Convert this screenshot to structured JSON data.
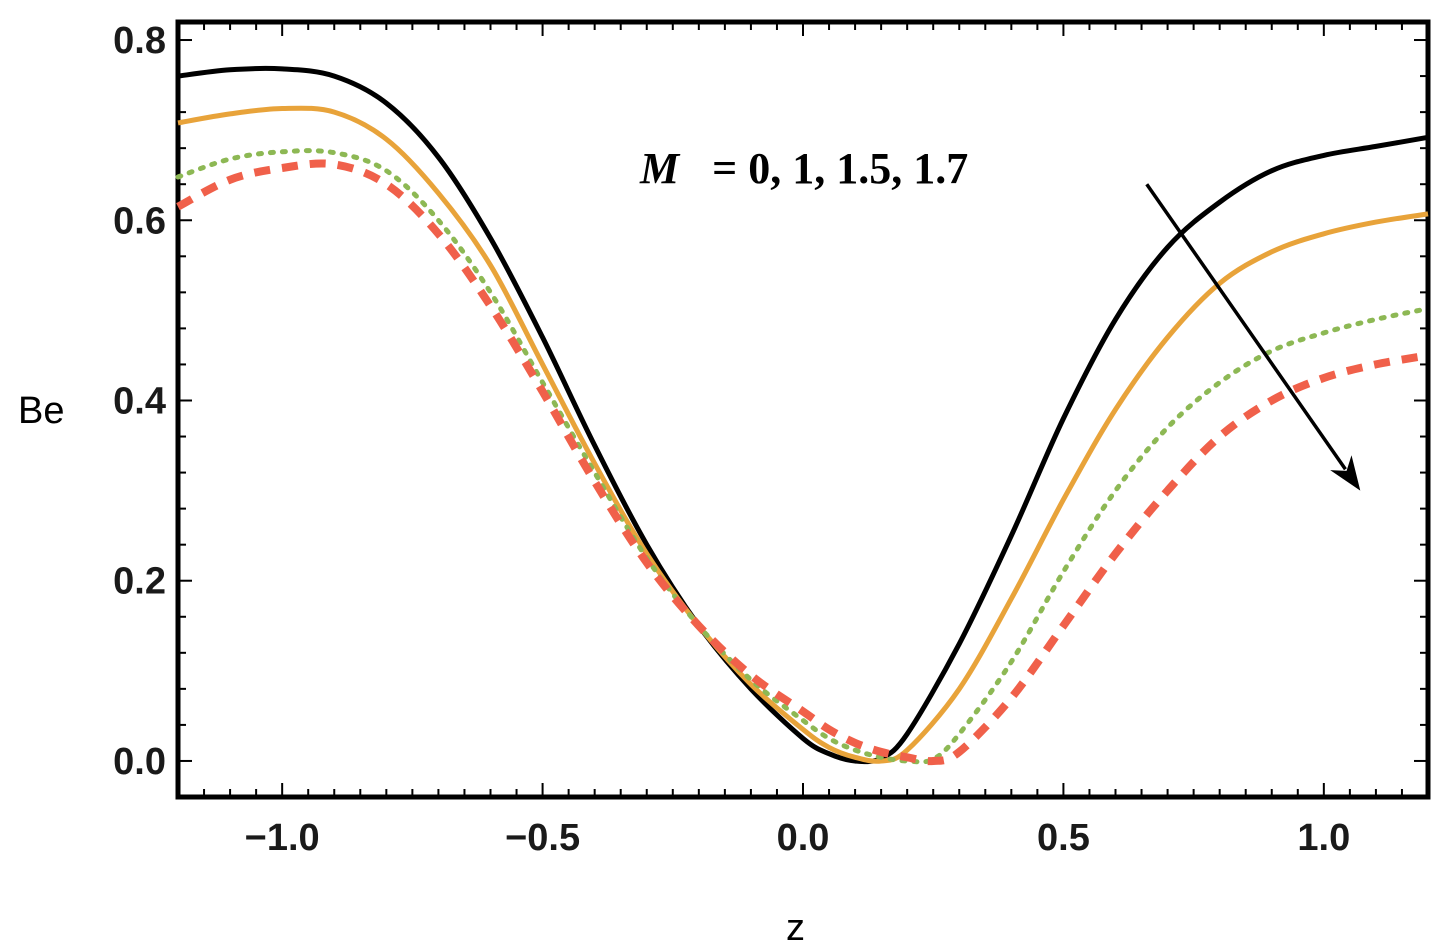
{
  "chart_data": {
    "type": "line",
    "title": "",
    "xlabel": "z",
    "ylabel": "Be",
    "xlim": [
      -1.2,
      1.2
    ],
    "ylim": [
      -0.04,
      0.82
    ],
    "x_ticks": [
      -1.0,
      -0.5,
      0.0,
      0.5,
      1.0
    ],
    "x_tick_labels": [
      "−1.0",
      "−0.5",
      "0.0",
      "0.5",
      "1.0"
    ],
    "y_ticks": [
      0.0,
      0.2,
      0.4,
      0.6,
      0.8
    ],
    "y_tick_labels": [
      "0.0",
      "0.2",
      "0.4",
      "0.6",
      "0.8"
    ],
    "grid": false,
    "annotation": {
      "var": "M",
      "text": "= 0,  1,  1.5,  1.7",
      "arrow_from": [
        0.66,
        0.64
      ],
      "arrow_to": [
        1.07,
        0.3
      ]
    },
    "series": [
      {
        "name": "M = 0",
        "color": "#000000",
        "style": "solid",
        "x": [
          -1.2,
          -1.1,
          -1.0,
          -0.9,
          -0.8,
          -0.7,
          -0.6,
          -0.5,
          -0.4,
          -0.3,
          -0.2,
          -0.1,
          0.0,
          0.05,
          0.1,
          0.15,
          0.2,
          0.3,
          0.4,
          0.5,
          0.6,
          0.7,
          0.8,
          0.9,
          1.0,
          1.1,
          1.2
        ],
        "values": [
          0.76,
          0.767,
          0.768,
          0.76,
          0.73,
          0.67,
          0.58,
          0.47,
          0.35,
          0.24,
          0.15,
          0.08,
          0.025,
          0.008,
          0.0,
          0.003,
          0.03,
          0.13,
          0.25,
          0.38,
          0.49,
          0.57,
          0.62,
          0.655,
          0.672,
          0.682,
          0.692
        ]
      },
      {
        "name": "M = 1",
        "color": "#E8A33A",
        "style": "solid",
        "x": [
          -1.2,
          -1.1,
          -1.0,
          -0.9,
          -0.8,
          -0.7,
          -0.6,
          -0.5,
          -0.4,
          -0.3,
          -0.2,
          -0.1,
          0.0,
          0.05,
          0.1,
          0.15,
          0.2,
          0.3,
          0.4,
          0.5,
          0.6,
          0.7,
          0.8,
          0.9,
          1.0,
          1.1,
          1.2
        ],
        "values": [
          0.708,
          0.718,
          0.724,
          0.72,
          0.69,
          0.63,
          0.55,
          0.44,
          0.33,
          0.23,
          0.15,
          0.085,
          0.035,
          0.015,
          0.004,
          0.0,
          0.012,
          0.08,
          0.18,
          0.29,
          0.39,
          0.47,
          0.53,
          0.565,
          0.585,
          0.598,
          0.607
        ]
      },
      {
        "name": "M = 1.5",
        "color": "#8DB854",
        "style": "dotted",
        "x": [
          -1.2,
          -1.1,
          -1.0,
          -0.9,
          -0.8,
          -0.7,
          -0.6,
          -0.5,
          -0.4,
          -0.3,
          -0.2,
          -0.1,
          0.0,
          0.05,
          0.1,
          0.15,
          0.2,
          0.25,
          0.3,
          0.4,
          0.5,
          0.6,
          0.7,
          0.8,
          0.9,
          1.0,
          1.1,
          1.2
        ],
        "values": [
          0.648,
          0.668,
          0.676,
          0.675,
          0.655,
          0.6,
          0.52,
          0.42,
          0.32,
          0.225,
          0.15,
          0.09,
          0.045,
          0.025,
          0.012,
          0.004,
          0.0,
          0.002,
          0.03,
          0.11,
          0.21,
          0.3,
          0.37,
          0.42,
          0.455,
          0.475,
          0.49,
          0.502
        ]
      },
      {
        "name": "M = 1.7",
        "color": "#F0604A",
        "style": "dashed",
        "x": [
          -1.2,
          -1.1,
          -1.0,
          -0.9,
          -0.8,
          -0.7,
          -0.6,
          -0.5,
          -0.4,
          -0.3,
          -0.2,
          -0.1,
          0.0,
          0.05,
          0.1,
          0.15,
          0.2,
          0.25,
          0.3,
          0.4,
          0.5,
          0.6,
          0.7,
          0.8,
          0.9,
          1.0,
          1.1,
          1.2
        ],
        "values": [
          0.615,
          0.645,
          0.658,
          0.662,
          0.64,
          0.585,
          0.505,
          0.41,
          0.31,
          0.22,
          0.15,
          0.095,
          0.055,
          0.035,
          0.02,
          0.01,
          0.004,
          0.0,
          0.01,
          0.07,
          0.15,
          0.23,
          0.3,
          0.36,
          0.4,
          0.425,
          0.44,
          0.45
        ]
      }
    ]
  }
}
